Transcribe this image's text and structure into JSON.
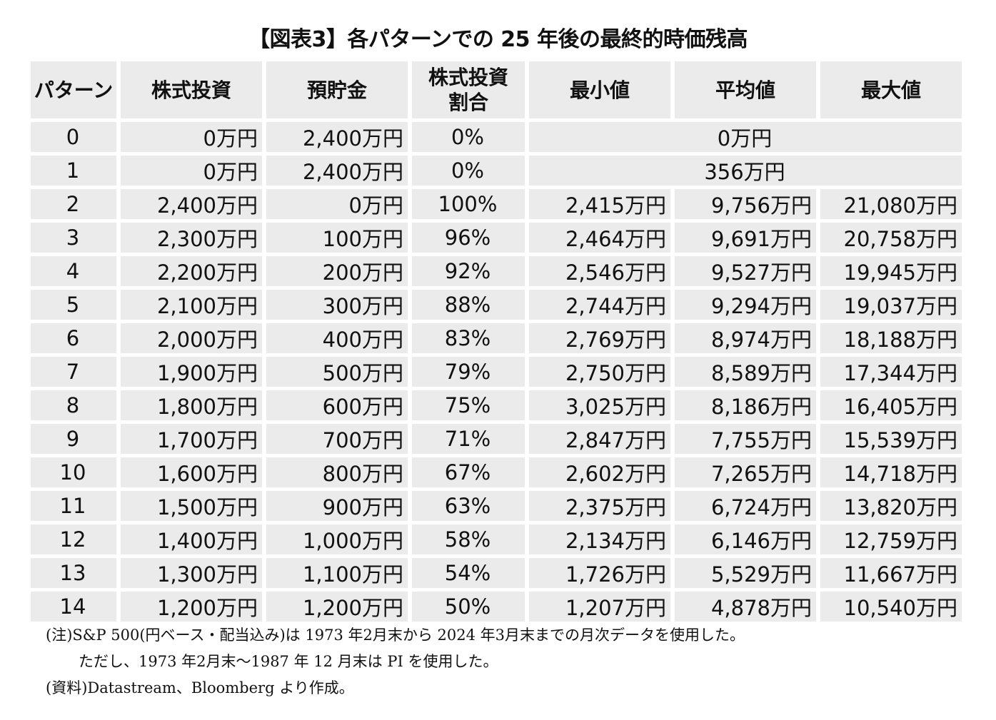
{
  "title": "【図表3】各パターンでの 25 年後の最終的時価残高",
  "headers": [
    "パターン",
    "株式投資",
    "預貯金",
    "株式投資\n割合",
    "最小値",
    "平均値",
    "最大値"
  ],
  "rows": [
    {
      "pattern": "0",
      "stock": "0万円",
      "deposit": "2,400万円",
      "ratio": "0%",
      "merged": "0万円"
    },
    {
      "pattern": "1",
      "stock": "0万円",
      "deposit": "2,400万円",
      "ratio": "0%",
      "merged": "356万円"
    },
    {
      "pattern": "2",
      "stock": "2,400万円",
      "deposit": "0万円",
      "ratio": "100%",
      "min": "2,415万円",
      "avg": "9,756万円",
      "max": "21,080万円",
      "highlight": "blue"
    },
    {
      "pattern": "3",
      "stock": "2,300万円",
      "deposit": "100万円",
      "ratio": "96%",
      "min": "2,464万円",
      "avg": "9,691万円",
      "max": "20,758万円"
    },
    {
      "pattern": "4",
      "stock": "2,200万円",
      "deposit": "200万円",
      "ratio": "92%",
      "min": "2,546万円",
      "avg": "9,527万円",
      "max": "19,945万円"
    },
    {
      "pattern": "5",
      "stock": "2,100万円",
      "deposit": "300万円",
      "ratio": "88%",
      "min": "2,744万円",
      "avg": "9,294万円",
      "max": "19,037万円"
    },
    {
      "pattern": "6",
      "stock": "2,000万円",
      "deposit": "400万円",
      "ratio": "83%",
      "min": "2,769万円",
      "avg": "8,974万円",
      "max": "18,188万円"
    },
    {
      "pattern": "7",
      "stock": "1,900万円",
      "deposit": "500万円",
      "ratio": "79%",
      "min": "2,750万円",
      "avg": "8,589万円",
      "max": "17,344万円"
    },
    {
      "pattern": "8",
      "stock": "1,800万円",
      "deposit": "600万円",
      "ratio": "75%",
      "min": "3,025万円",
      "avg": "8,186万円",
      "max": "16,405万円",
      "highlight": "orange"
    },
    {
      "pattern": "9",
      "stock": "1,700万円",
      "deposit": "700万円",
      "ratio": "71%",
      "min": "2,847万円",
      "avg": "7,755万円",
      "max": "15,539万円"
    },
    {
      "pattern": "10",
      "stock": "1,600万円",
      "deposit": "800万円",
      "ratio": "67%",
      "min": "2,602万円",
      "avg": "7,265万円",
      "max": "14,718万円"
    },
    {
      "pattern": "11",
      "stock": "1,500万円",
      "deposit": "900万円",
      "ratio": "63%",
      "min": "2,375万円",
      "avg": "6,724万円",
      "max": "13,820万円"
    },
    {
      "pattern": "12",
      "stock": "1,400万円",
      "deposit": "1,000万円",
      "ratio": "58%",
      "min": "2,134万円",
      "avg": "6,146万円",
      "max": "12,759万円"
    },
    {
      "pattern": "13",
      "stock": "1,300万円",
      "deposit": "1,100万円",
      "ratio": "54%",
      "min": "1,726万円",
      "avg": "5,529万円",
      "max": "11,667万円"
    },
    {
      "pattern": "14",
      "stock": "1,200万円",
      "deposit": "1,200万円",
      "ratio": "50%",
      "min": "1,207万円",
      "avg": "4,878万円",
      "max": "10,540万円"
    }
  ],
  "notes": [
    "(注)S&P 500(円ベース・配当込み)は 1973 年2月末から 2024 年3月末までの月次データを使用した。",
    "ただし、1973 年2月末～1987 年 12 月末は PI を使用した。",
    "(資料)Datastream、Bloomberg より作成。"
  ],
  "colors": {
    "header_bg": "#ebebeb",
    "highlight_blue": "#bdd7ee",
    "highlight_orange": "#f8cbad"
  }
}
